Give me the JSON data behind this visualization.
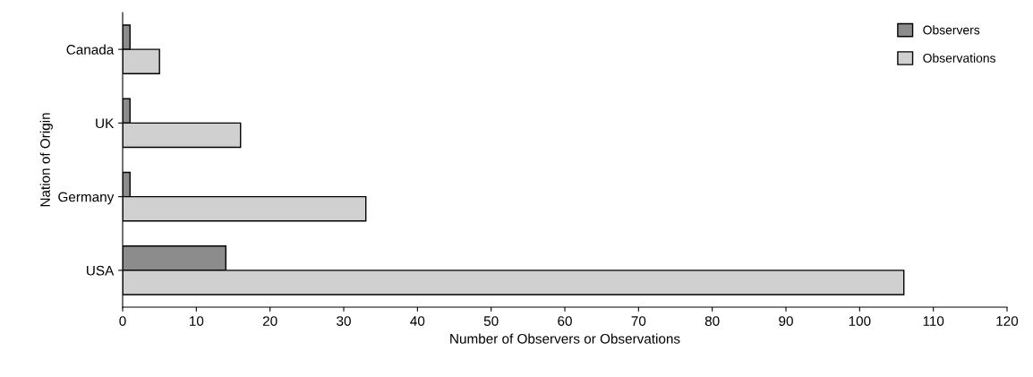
{
  "chart_data": {
    "type": "bar",
    "orientation": "horizontal",
    "xlabel": "Number of Observers or Observations",
    "ylabel": "Nation of Origin",
    "categories": [
      "Canada",
      "UK",
      "Germany",
      "USA"
    ],
    "series": [
      {
        "name": "Observers",
        "color": "#8c8c8c",
        "values": [
          1,
          1,
          1,
          14
        ]
      },
      {
        "name": "Observations",
        "color": "#d0d0d0",
        "values": [
          5,
          16,
          33,
          106
        ]
      }
    ],
    "xlim": [
      0,
      120
    ],
    "xticks": [
      0,
      10,
      20,
      30,
      40,
      50,
      60,
      70,
      80,
      90,
      100,
      110,
      120
    ],
    "grid": false,
    "legend": "top right"
  }
}
